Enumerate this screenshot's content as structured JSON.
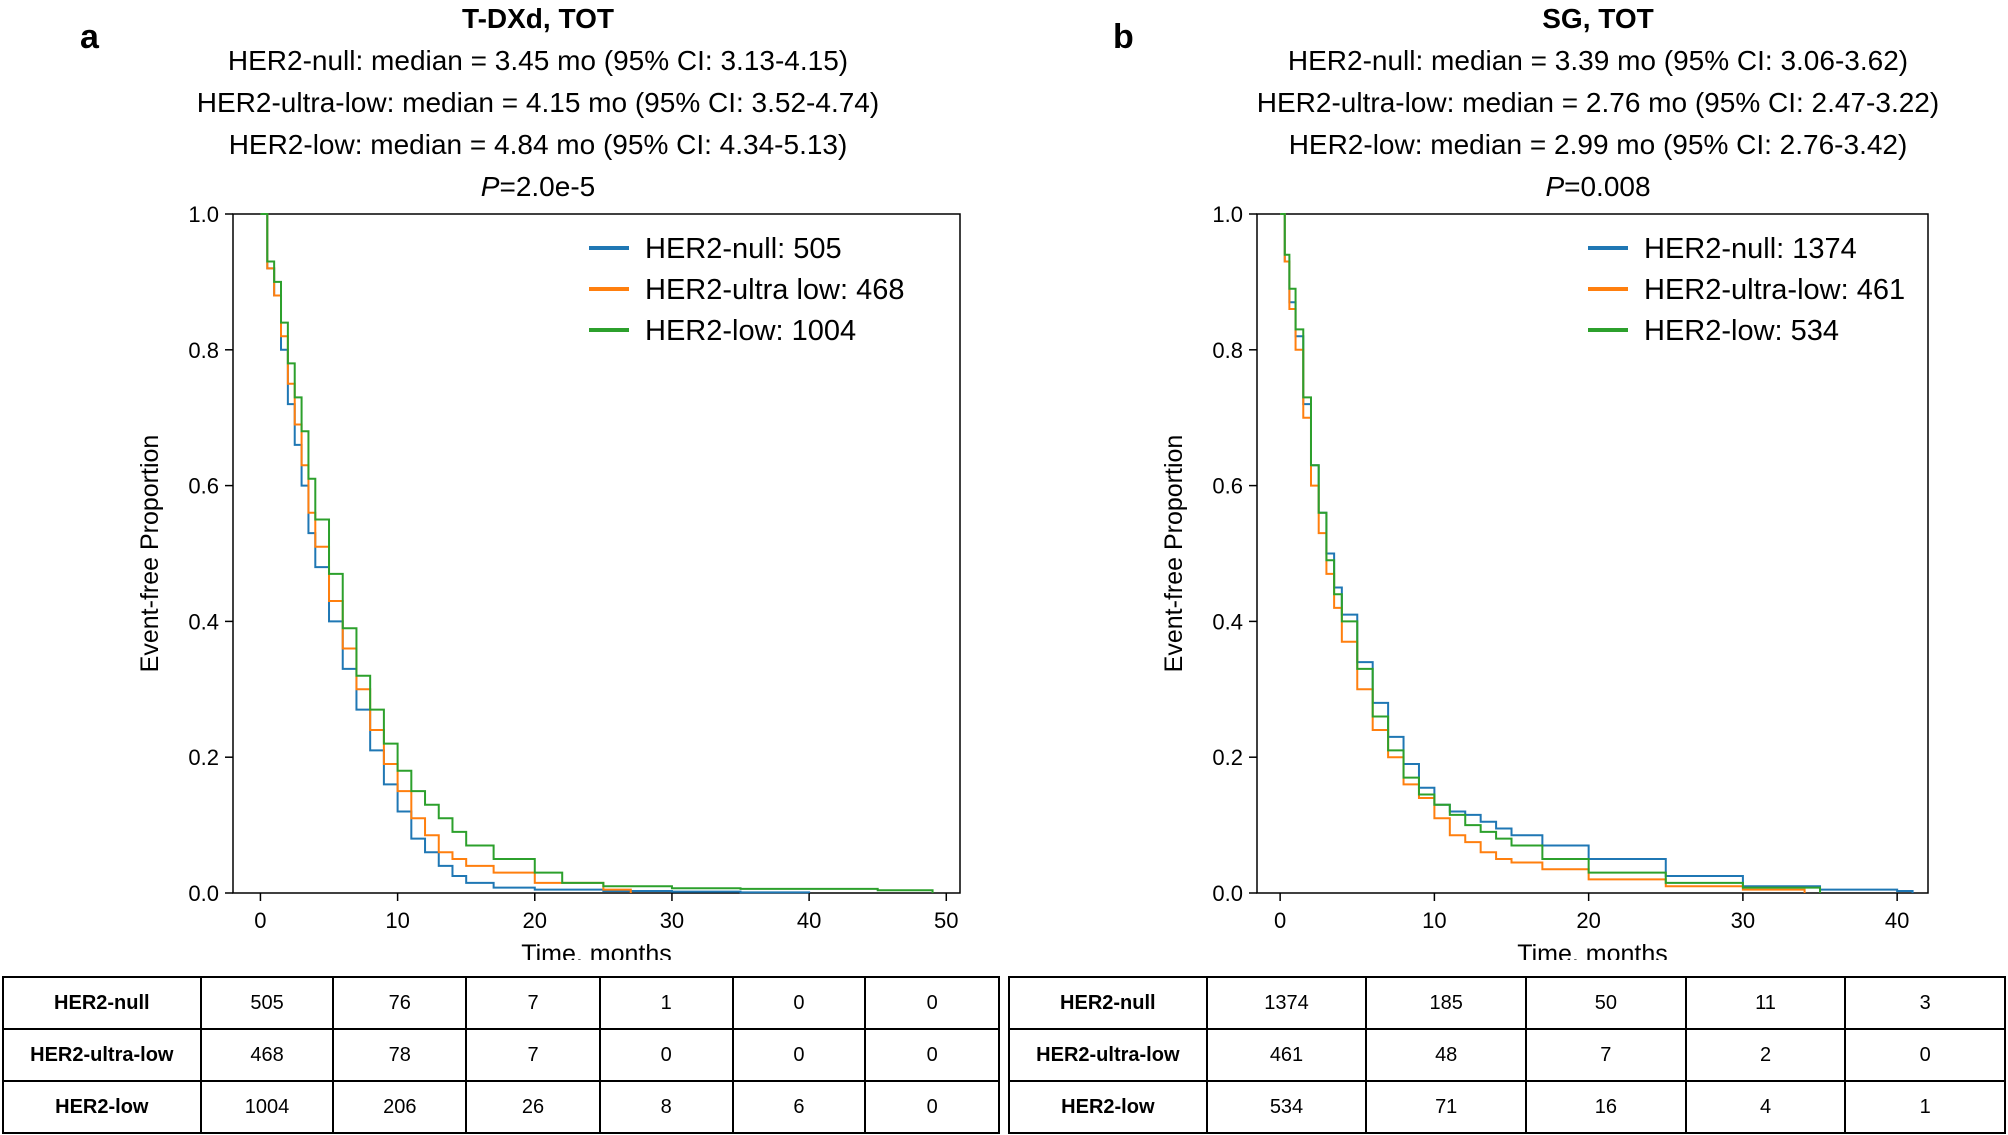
{
  "panels": [
    {
      "letter": "a",
      "title": "T-DXd, TOT",
      "stats": [
        "HER2-null: median = 3.45 mo (95% CI: 3.13-4.15)",
        "HER2-ultra-low: median = 4.15 mo (95% CI: 3.52-4.74)",
        "HER2-low: median = 4.84 mo (95% CI: 4.34-5.13)"
      ],
      "p_prefix": "P",
      "p_value": "=2.0e-5",
      "risk_table": {
        "rows": [
          {
            "label": "HER2-null",
            "values": [
              "505",
              "76",
              "7",
              "1",
              "0",
              "0"
            ]
          },
          {
            "label": "HER2-ultra-low",
            "values": [
              "468",
              "78",
              "7",
              "0",
              "0",
              "0"
            ]
          },
          {
            "label": "HER2-low",
            "values": [
              "1004",
              "206",
              "26",
              "8",
              "6",
              "0"
            ]
          }
        ]
      }
    },
    {
      "letter": "b",
      "title": "SG, TOT",
      "stats": [
        "HER2-null: median = 3.39 mo (95% CI: 3.06-3.62)",
        "HER2-ultra-low: median = 2.76 mo (95% CI: 2.47-3.22)",
        "HER2-low: median = 2.99 mo (95% CI: 2.76-3.42)"
      ],
      "p_prefix": "P",
      "p_value": "=0.008",
      "risk_table": {
        "rows": [
          {
            "label": "HER2-null",
            "values": [
              "1374",
              "185",
              "50",
              "11",
              "3"
            ]
          },
          {
            "label": "HER2-ultra-low",
            "values": [
              "461",
              "48",
              "7",
              "2",
              "0"
            ]
          },
          {
            "label": "HER2-low",
            "values": [
              "534",
              "71",
              "16",
              "4",
              "1"
            ]
          }
        ]
      }
    }
  ],
  "chart_data": [
    {
      "type": "line",
      "title": "T-DXd, TOT",
      "xlabel": "Time, months",
      "ylabel": "Event-free Proportion",
      "xlim": [
        -2,
        51
      ],
      "ylim": [
        0,
        1.0
      ],
      "xticks": [
        0,
        10,
        20,
        30,
        40,
        50
      ],
      "yticks": [
        0.0,
        0.2,
        0.4,
        0.6,
        0.8,
        1.0
      ],
      "legend_position": "top-right",
      "grid": false,
      "series": [
        {
          "name": "HER2-null: 505",
          "color": "#1f77b4",
          "x": [
            0,
            0.5,
            1,
            1.5,
            2,
            2.5,
            3,
            3.5,
            4,
            5,
            6,
            7,
            8,
            9,
            10,
            11,
            12,
            13,
            14,
            15,
            17,
            20,
            25,
            30,
            35,
            40
          ],
          "y": [
            1.0,
            0.92,
            0.88,
            0.8,
            0.72,
            0.66,
            0.6,
            0.53,
            0.48,
            0.4,
            0.33,
            0.27,
            0.21,
            0.16,
            0.12,
            0.08,
            0.06,
            0.04,
            0.025,
            0.015,
            0.008,
            0.005,
            0.003,
            0.002,
            0.001,
            0.0
          ]
        },
        {
          "name": "HER2-ultra low: 468",
          "color": "#ff7f0e",
          "x": [
            0,
            0.5,
            1,
            1.5,
            2,
            2.5,
            3,
            3.5,
            4,
            5,
            6,
            7,
            8,
            9,
            10,
            11,
            12,
            13,
            14,
            15,
            17,
            20,
            25,
            27
          ],
          "y": [
            1.0,
            0.92,
            0.88,
            0.82,
            0.75,
            0.69,
            0.63,
            0.56,
            0.51,
            0.43,
            0.36,
            0.3,
            0.24,
            0.19,
            0.15,
            0.11,
            0.085,
            0.06,
            0.05,
            0.04,
            0.03,
            0.015,
            0.005,
            0.0
          ]
        },
        {
          "name": "HER2-low: 1004",
          "color": "#2ca02c",
          "x": [
            0,
            0.5,
            1,
            1.5,
            2,
            2.5,
            3,
            3.5,
            4,
            5,
            6,
            7,
            8,
            9,
            10,
            11,
            12,
            13,
            14,
            15,
            17,
            20,
            22,
            25,
            30,
            35,
            40,
            45,
            49
          ],
          "y": [
            1.0,
            0.93,
            0.9,
            0.84,
            0.78,
            0.73,
            0.68,
            0.61,
            0.55,
            0.47,
            0.39,
            0.32,
            0.27,
            0.22,
            0.18,
            0.15,
            0.13,
            0.11,
            0.09,
            0.07,
            0.05,
            0.03,
            0.015,
            0.01,
            0.007,
            0.006,
            0.006,
            0.004,
            0.0
          ]
        }
      ]
    },
    {
      "type": "line",
      "title": "SG, TOT",
      "xlabel": "Time, months",
      "ylabel": "Event-free Proportion",
      "xlim": [
        -1.5,
        42
      ],
      "ylim": [
        0,
        1.0
      ],
      "xticks": [
        0,
        10,
        20,
        30,
        40
      ],
      "yticks": [
        0.0,
        0.2,
        0.4,
        0.6,
        0.8,
        1.0
      ],
      "legend_position": "top-right",
      "grid": false,
      "series": [
        {
          "name": "HER2-null: 1374",
          "color": "#1f77b4",
          "x": [
            0,
            0.3,
            0.6,
            1,
            1.5,
            2,
            2.5,
            3,
            3.5,
            4,
            5,
            6,
            7,
            8,
            9,
            10,
            11,
            12,
            13,
            14,
            15,
            17,
            20,
            25,
            30,
            35,
            40,
            41
          ],
          "y": [
            1.0,
            0.93,
            0.87,
            0.82,
            0.72,
            0.63,
            0.56,
            0.5,
            0.45,
            0.41,
            0.34,
            0.28,
            0.23,
            0.19,
            0.155,
            0.13,
            0.12,
            0.115,
            0.105,
            0.095,
            0.085,
            0.07,
            0.05,
            0.025,
            0.01,
            0.005,
            0.003,
            0.0
          ]
        },
        {
          "name": "HER2-ultra-low: 461",
          "color": "#ff7f0e",
          "x": [
            0,
            0.3,
            0.6,
            1,
            1.5,
            2,
            2.5,
            3,
            3.5,
            4,
            5,
            6,
            7,
            8,
            9,
            10,
            11,
            12,
            13,
            14,
            15,
            17,
            20,
            25,
            30,
            34
          ],
          "y": [
            1.0,
            0.93,
            0.86,
            0.8,
            0.7,
            0.6,
            0.53,
            0.47,
            0.42,
            0.37,
            0.3,
            0.24,
            0.2,
            0.16,
            0.14,
            0.11,
            0.085,
            0.075,
            0.06,
            0.05,
            0.045,
            0.035,
            0.02,
            0.01,
            0.005,
            0.0
          ]
        },
        {
          "name": "HER2-low: 534",
          "color": "#2ca02c",
          "x": [
            0,
            0.3,
            0.6,
            1,
            1.5,
            2,
            2.5,
            3,
            3.5,
            4,
            5,
            6,
            7,
            8,
            9,
            10,
            11,
            12,
            13,
            14,
            15,
            17,
            20,
            25,
            30,
            35
          ],
          "y": [
            1.0,
            0.94,
            0.89,
            0.83,
            0.73,
            0.63,
            0.56,
            0.49,
            0.44,
            0.4,
            0.33,
            0.26,
            0.21,
            0.17,
            0.145,
            0.13,
            0.115,
            0.1,
            0.09,
            0.08,
            0.07,
            0.05,
            0.03,
            0.015,
            0.008,
            0.0
          ]
        }
      ]
    }
  ]
}
